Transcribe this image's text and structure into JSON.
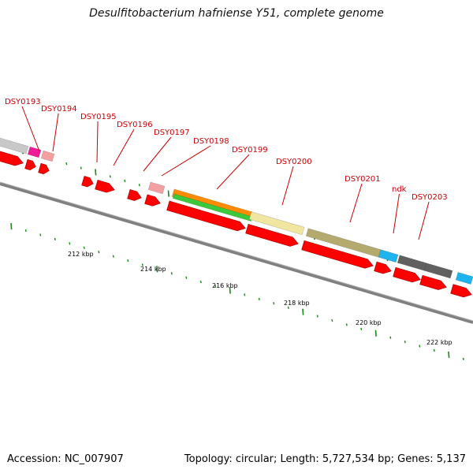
{
  "title": "Desulfitobacterium hafniense Y51, complete genome",
  "footer": {
    "accession": "Accession: NC_007907",
    "stats": "Topology: circular; Length: 5,727,534 bp; Genes: 5,137"
  },
  "gene_labels": [
    "DSY0193",
    "DSY0194",
    "DSY0195",
    "DSY0196",
    "DSY0197",
    "DSY0198",
    "DSY0199",
    "DSY0200",
    "DSY0201",
    "ndk",
    "DSY0203"
  ],
  "scale_labels": [
    "212 kbp",
    "214 kbp",
    "216 kbp",
    "218 kbp",
    "220 kbp",
    "222 kbp"
  ],
  "colors": {
    "gene_arrow": "#ff0000",
    "label_text": "#cc0000",
    "backbone": "#808080",
    "tick": "#1a8a1a",
    "cog_gray": "#c8c8c8",
    "cog_magenta": "#ee1c96",
    "cog_pink": "#f4a0a0",
    "cog_orange": "#ff8c00",
    "cog_green": "#3cc83c",
    "cog_pale_yellow": "#f0e6a0",
    "cog_olive": "#b4aa6e",
    "cog_cyan": "#1eb4f0",
    "cog_dark_gray": "#606060"
  }
}
